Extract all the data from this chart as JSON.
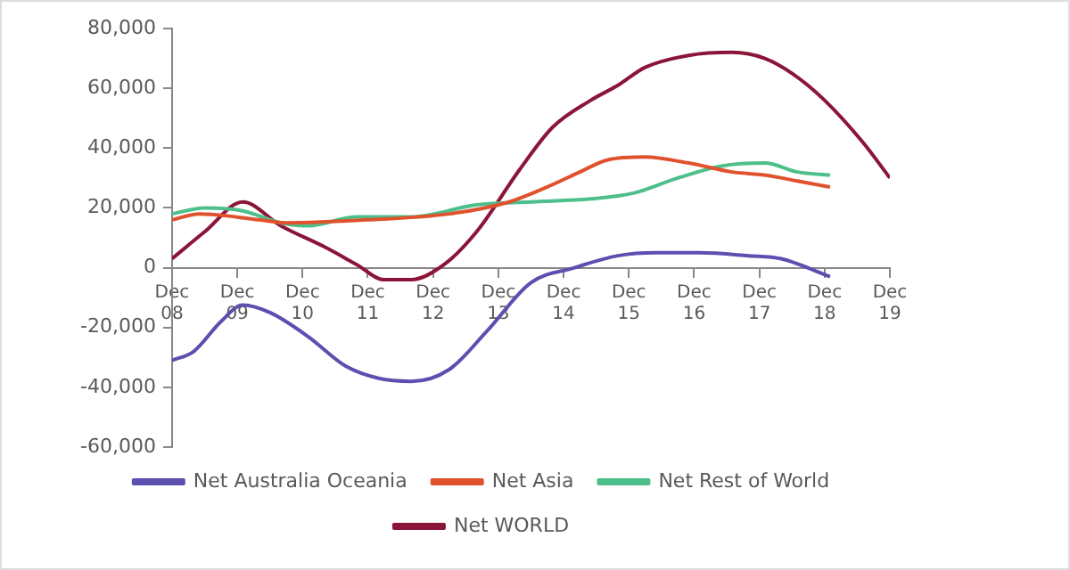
{
  "chart_data": {
    "type": "line",
    "legend": "bottom",
    "grid": false,
    "marker": "none",
    "line_style": "solid",
    "ylim": [
      -60000,
      80000
    ],
    "yticks": [
      {
        "value": -60000,
        "label": "-60,000"
      },
      {
        "value": -40000,
        "label": "-40,000"
      },
      {
        "value": -20000,
        "label": "-20,000"
      },
      {
        "value": 0,
        "label": "0"
      },
      {
        "value": 20000,
        "label": "20,000"
      },
      {
        "value": 40000,
        "label": "40,000"
      },
      {
        "value": 60000,
        "label": "60,000"
      },
      {
        "value": 80000,
        "label": "80,000"
      }
    ],
    "xlim": [
      "2008-12",
      "2019-12"
    ],
    "xticks": [
      {
        "value": "2008-12",
        "label": "Dec 08"
      },
      {
        "value": "2009-12",
        "label": "Dec 09"
      },
      {
        "value": "2010-12",
        "label": "Dec 10"
      },
      {
        "value": "2011-12",
        "label": "Dec 11"
      },
      {
        "value": "2012-12",
        "label": "Dec 12"
      },
      {
        "value": "2013-12",
        "label": "Dec 13"
      },
      {
        "value": "2014-12",
        "label": "Dec 14"
      },
      {
        "value": "2015-12",
        "label": "Dec 15"
      },
      {
        "value": "2016-12",
        "label": "Dec 16"
      },
      {
        "value": "2017-12",
        "label": "Dec 17"
      },
      {
        "value": "2018-12",
        "label": "Dec 18"
      },
      {
        "value": "2019-12",
        "label": "Dec 19"
      }
    ],
    "series": [
      {
        "name": "Net Australia Oceania",
        "color": "#5b4fb0",
        "x": [
          "2008-12",
          "2009-04",
          "2009-09",
          "2010-01",
          "2010-06",
          "2011-01",
          "2011-08",
          "2012-02",
          "2012-08",
          "2013-03",
          "2013-10",
          "2014-06",
          "2015-02",
          "2015-10",
          "2016-05",
          "2017-01",
          "2017-10",
          "2018-04",
          "2019-01"
        ],
        "values": [
          -31000,
          -28000,
          -18000,
          -12500,
          -15000,
          -23000,
          -33000,
          -37000,
          -38000,
          -34000,
          -21000,
          -5000,
          0,
          4000,
          5000,
          5000,
          4000,
          3000,
          -3000
        ]
      },
      {
        "name": "Net Asia",
        "color": "#e0522e",
        "x": [
          "2008-12",
          "2009-05",
          "2010-04",
          "2010-09",
          "2011-12",
          "2013-03",
          "2014-02",
          "2014-09",
          "2015-03",
          "2015-08",
          "2016-03",
          "2016-11",
          "2017-07",
          "2018-01",
          "2018-07",
          "2019-01"
        ],
        "values": [
          16000,
          18000,
          16000,
          15000,
          16000,
          18000,
          22000,
          27000,
          32000,
          36000,
          37000,
          35000,
          32000,
          31000,
          29000,
          27000
        ]
      },
      {
        "name": "Net Rest of World",
        "color": "#4dbf8a",
        "x": [
          "2008-12",
          "2009-06",
          "2010-01",
          "2010-08",
          "2011-01",
          "2011-10",
          "2012-08",
          "2013-08",
          "2014-06",
          "2015-05",
          "2016-01",
          "2016-09",
          "2017-05",
          "2018-01",
          "2018-07",
          "2019-01"
        ],
        "values": [
          18000,
          20000,
          19000,
          15000,
          14000,
          17000,
          17000,
          21000,
          22000,
          23000,
          25000,
          30000,
          34000,
          35000,
          32000,
          31000
        ]
      },
      {
        "name": "Net WORLD",
        "color": "#8b1538",
        "x": [
          "2008-12",
          "2009-06",
          "2010-01",
          "2010-08",
          "2011-04",
          "2011-10",
          "2012-03",
          "2012-08",
          "2013-02",
          "2013-08",
          "2014-04",
          "2014-10",
          "2015-05",
          "2015-10",
          "2016-03",
          "2016-11",
          "2017-07",
          "2018-01",
          "2018-06",
          "2018-12",
          "2019-07",
          "2019-12"
        ],
        "values": [
          3000,
          12000,
          22000,
          14000,
          7000,
          1000,
          -4000,
          -4000,
          1000,
          12000,
          33000,
          47000,
          56000,
          61000,
          67000,
          71000,
          72000,
          70000,
          65000,
          56000,
          42000,
          30000
        ]
      }
    ]
  }
}
